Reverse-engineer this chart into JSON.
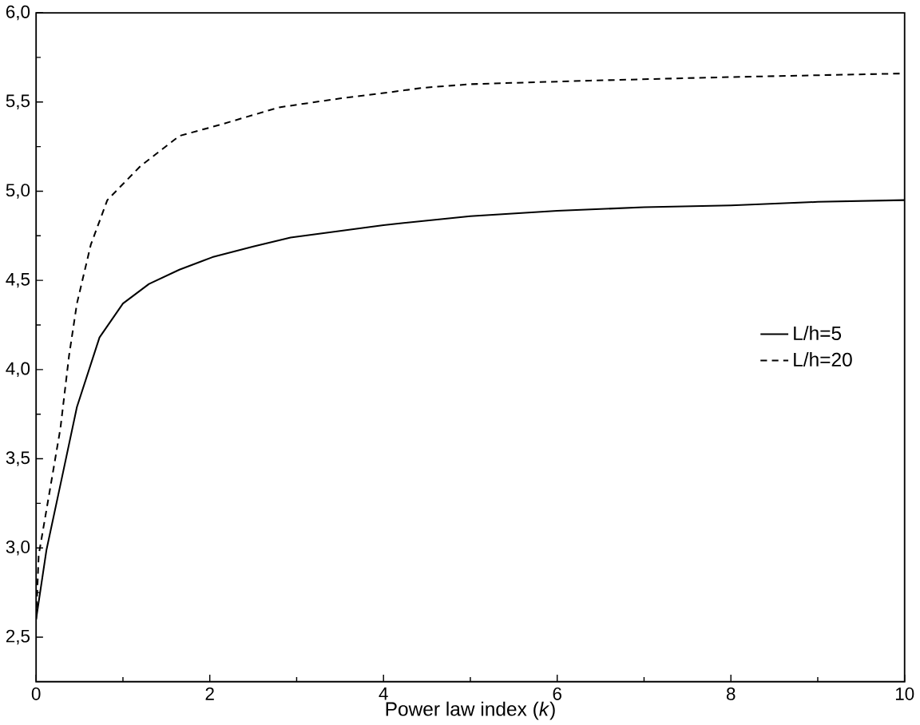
{
  "chart_data": {
    "type": "line",
    "xlabel": "Power law index (*k*)",
    "xlim": [
      0,
      10
    ],
    "ylim": [
      2.25,
      6.0
    ],
    "xticks": [
      0,
      2,
      4,
      6,
      8,
      10
    ],
    "yticks": [
      {
        "value": 2.5,
        "label": "2,5"
      },
      {
        "value": 3.0,
        "label": "3,0"
      },
      {
        "value": 3.5,
        "label": "3,5"
      },
      {
        "value": 4.0,
        "label": "4,0"
      },
      {
        "value": 4.5,
        "label": "4,5"
      },
      {
        "value": 5.0,
        "label": "5,0"
      },
      {
        "value": 5.5,
        "label": "5,5"
      },
      {
        "value": 6.0,
        "label": "6,0"
      }
    ],
    "legend": "right",
    "grid": false,
    "marker": "none",
    "series": [
      {
        "name": "L/h=5",
        "color": "#000000",
        "line_style": "solid",
        "x": [
          0,
          0.12,
          0.3,
          0.47,
          0.73,
          1.0,
          1.3,
          1.65,
          2.03,
          2.5,
          2.93,
          4,
          5,
          6,
          7,
          8,
          9,
          10
        ],
        "values": [
          2.6,
          2.99,
          3.4,
          3.79,
          4.18,
          4.37,
          4.48,
          4.56,
          4.63,
          4.69,
          4.74,
          4.81,
          4.86,
          4.89,
          4.91,
          4.92,
          4.94,
          4.95
        ]
      },
      {
        "name": "L/h=20",
        "color": "#000000",
        "line_style": "dashed",
        "x": [
          0,
          0.03,
          0.15,
          0.28,
          0.38,
          0.47,
          0.63,
          0.82,
          1.2,
          1.65,
          2.1,
          2.8,
          3.5,
          4,
          4.46,
          5,
          6.38,
          8,
          9,
          10
        ],
        "values": [
          2.6,
          2.96,
          3.3,
          3.67,
          4.08,
          4.37,
          4.7,
          4.95,
          5.14,
          5.31,
          5.37,
          5.47,
          5.52,
          5.55,
          5.58,
          5.6,
          5.62,
          5.64,
          5.65,
          5.66
        ]
      }
    ]
  }
}
